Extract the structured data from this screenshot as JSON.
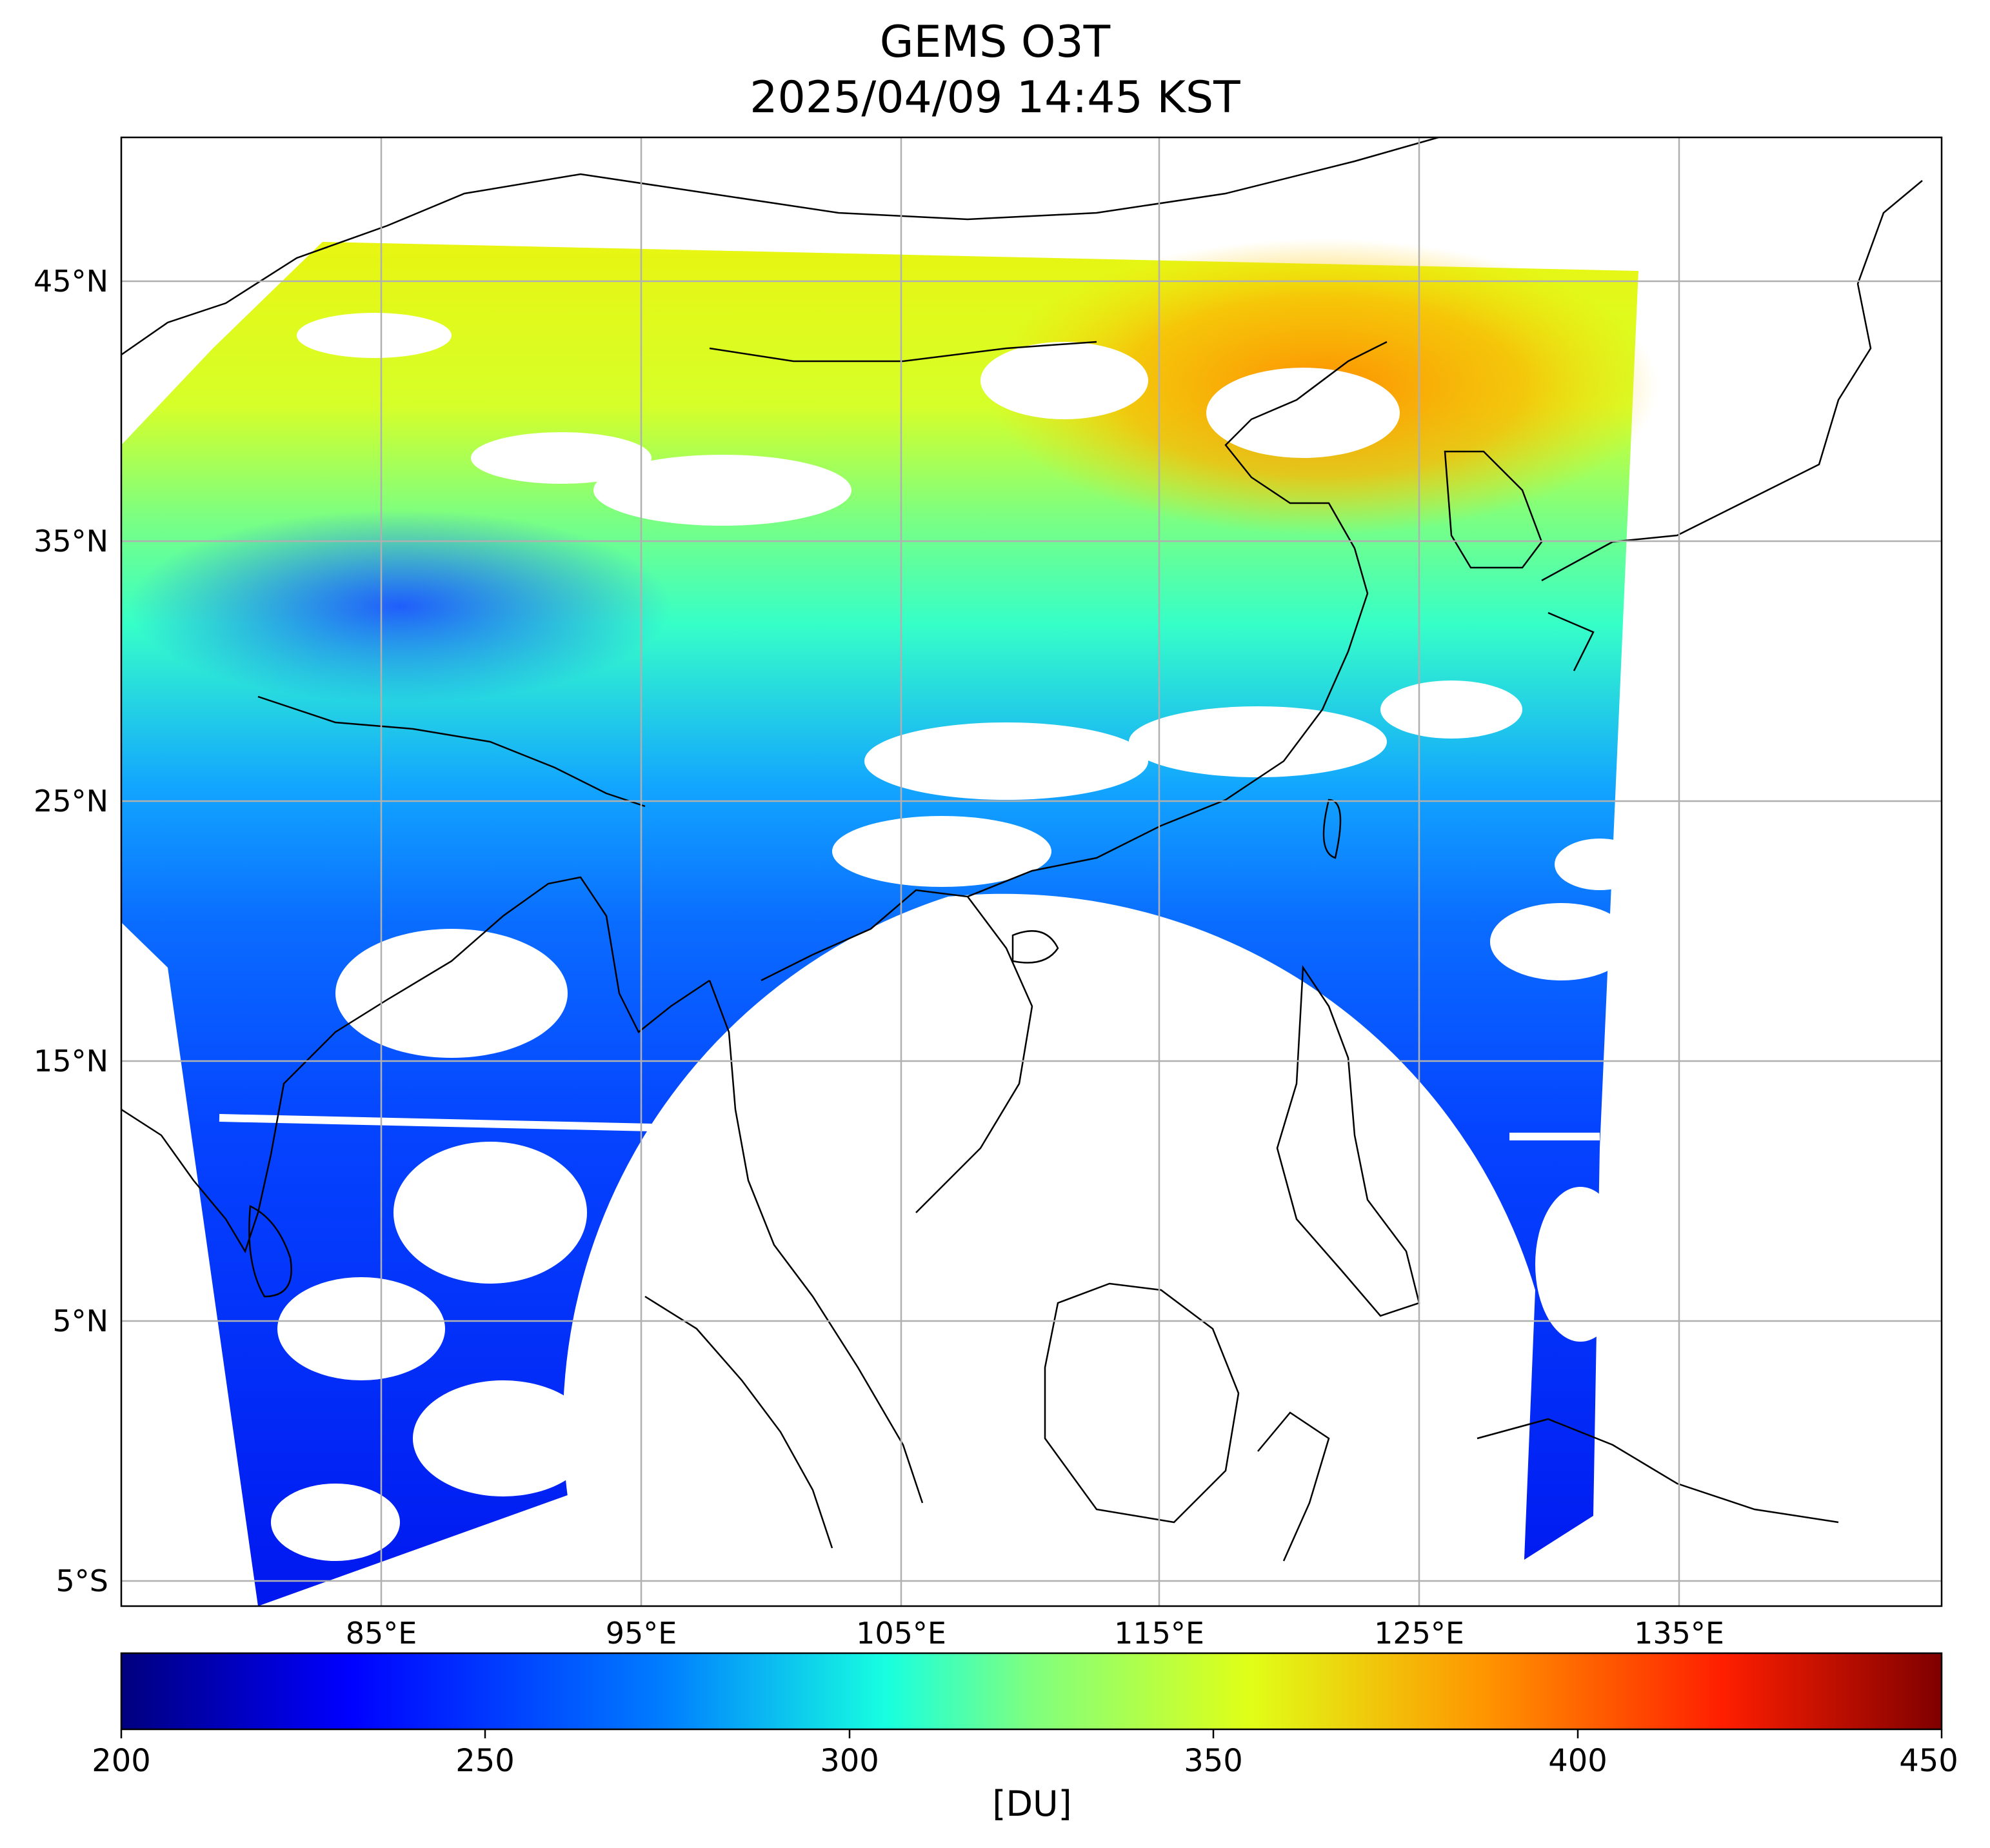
{
  "title": "GEMS O3T",
  "subtitle": "2025/04/09 14:45 KST",
  "longitude_labels": [
    "85°E",
    "95°E",
    "105°E",
    "115°E",
    "125°E",
    "135°E"
  ],
  "latitude_labels": [
    "45°N",
    "35°N",
    "25°N",
    "15°N",
    "5°N",
    "5°S"
  ],
  "colorbar": {
    "min": 200,
    "max": 450,
    "tick_labels": [
      "200",
      "250",
      "300",
      "350",
      "400",
      "450"
    ],
    "unit": "[DU]",
    "colormap": "jet",
    "colors": [
      "#00007f",
      "#0000ff",
      "#007fff",
      "#17ffe0",
      "#7fff7f",
      "#e0ff17",
      "#ff9400",
      "#ff1e00",
      "#7f0000"
    ]
  },
  "map": {
    "lon_range": [
      75,
      145
    ],
    "lat_range": [
      -6,
      50.5
    ],
    "grid": true,
    "background": "#ffffff",
    "coastline_color": "#000000"
  }
}
